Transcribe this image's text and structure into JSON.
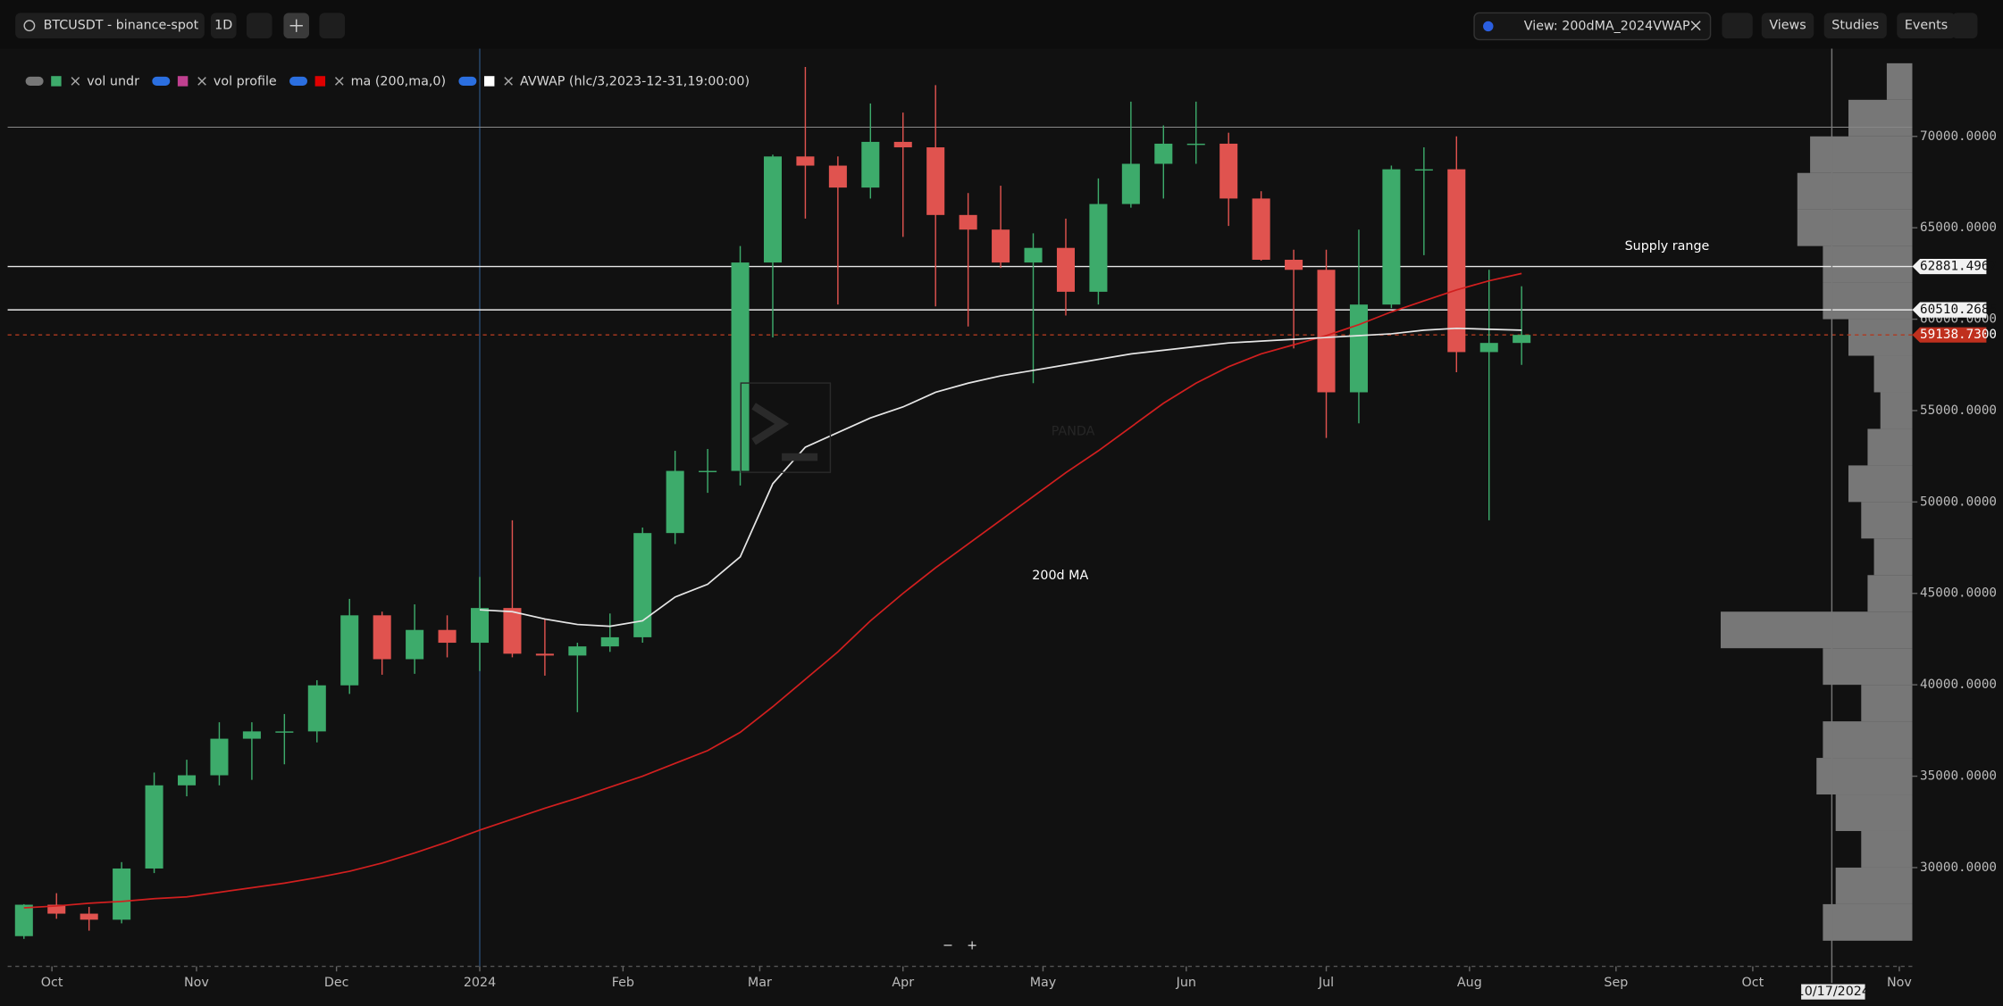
{
  "toolbar": {
    "symbol": "BTCUSDT - binance-spot",
    "interval": "1D",
    "view": "View: 200dMA_2024VWAP",
    "buttons": [
      "Views",
      "Studies",
      "Events"
    ]
  },
  "legend": [
    "vol undr",
    "vol profile",
    "ma (200,ma,0)",
    "AVWAP (hlc/3,2023-12-31,19:00:00)"
  ],
  "watermark": "PANDA",
  "zoom_controls": [
    "−",
    "+"
  ],
  "crosshair_date": "10/17/2024",
  "chart_data": {
    "type": "candlestick",
    "annotations": [
      "Supply range",
      "200d MA"
    ],
    "xlim": [
      -0.5,
      58.0
    ],
    "xticks": [
      {
        "value": 0.86,
        "label": "Oct"
      },
      {
        "value": 5.3,
        "label": "Nov"
      },
      {
        "value": 9.6,
        "label": "Dec"
      },
      {
        "value": 14.0,
        "label": "2024"
      },
      {
        "value": 18.4,
        "label": "Feb"
      },
      {
        "value": 22.6,
        "label": "Mar"
      },
      {
        "value": 27.0,
        "label": "Apr"
      },
      {
        "value": 31.3,
        "label": "May"
      },
      {
        "value": 35.7,
        "label": "Jun"
      },
      {
        "value": 40.0,
        "label": "Jul"
      },
      {
        "value": 44.4,
        "label": "Aug"
      },
      {
        "value": 48.9,
        "label": "Sep"
      },
      {
        "value": 53.1,
        "label": "Oct"
      },
      {
        "value": 57.6,
        "label": "Nov"
      }
    ],
    "ylim": [
      24600,
      74800
    ],
    "yticks": [
      {
        "value": 30000,
        "label": "30000.0000"
      },
      {
        "value": 35000,
        "label": "35000.0000"
      },
      {
        "value": 40000,
        "label": "40000.0000"
      },
      {
        "value": 45000,
        "label": "45000.0000"
      },
      {
        "value": 50000,
        "label": "50000.0000"
      },
      {
        "value": 55000,
        "label": "55000.0000"
      },
      {
        "value": 60000,
        "label": "60000.0000"
      },
      {
        "value": 65000,
        "label": "65000.0000"
      },
      {
        "value": 70000,
        "label": "70000.0000"
      }
    ],
    "up_color": "#3dab6b",
    "down_color": "#e0534f",
    "candles": {
      "open": [
        26250,
        27970,
        27480,
        27150,
        29950,
        34500,
        35050,
        37050,
        37450,
        37450,
        39970,
        43800,
        41400,
        43000,
        42300,
        44200,
        41700,
        41600,
        42100,
        42600,
        48300,
        51700,
        51700,
        63100,
        68900,
        68400,
        67200,
        69700,
        69400,
        65700,
        64900,
        63100,
        63900,
        61500,
        66300,
        68500,
        69600,
        69600,
        66600,
        63250,
        62700,
        56000,
        60800,
        68200,
        68200,
        58200,
        58700
      ],
      "high": [
        28000,
        28600,
        27850,
        30300,
        35200,
        35900,
        37950,
        37950,
        38400,
        40250,
        44700,
        44000,
        44400,
        43800,
        45900,
        49000,
        43600,
        42300,
        43900,
        48600,
        52800,
        52900,
        64000,
        69000,
        73800,
        68900,
        71800,
        71300,
        72800,
        66900,
        67300,
        64700,
        65500,
        67700,
        71900,
        70600,
        71900,
        70200,
        67000,
        63800,
        63800,
        64900,
        68400,
        69400,
        70000,
        62700,
        61800
      ],
      "low": [
        26100,
        27200,
        26550,
        26950,
        29700,
        33900,
        34500,
        34800,
        35650,
        36850,
        39500,
        40550,
        40600,
        41500,
        40750,
        41500,
        40500,
        38500,
        41800,
        42300,
        47700,
        50500,
        50900,
        59000,
        65500,
        60800,
        66600,
        64500,
        60700,
        59600,
        62800,
        56500,
        60200,
        60800,
        66100,
        66600,
        68500,
        65100,
        63200,
        58400,
        53500,
        54300,
        60600,
        63500,
        57100,
        49000,
        57500
      ],
      "close": [
        27970,
        27480,
        27150,
        29950,
        34500,
        35050,
        37050,
        37450,
        37450,
        39970,
        43800,
        41400,
        43000,
        42300,
        44200,
        41700,
        41600,
        42100,
        42600,
        48300,
        51700,
        51700,
        63100,
        68900,
        68400,
        67200,
        69700,
        69400,
        65700,
        64900,
        63100,
        63900,
        61500,
        66300,
        68500,
        69600,
        69600,
        66600,
        63250,
        62700,
        56000,
        60800,
        68200,
        68200,
        58200,
        58700,
        59140
      ]
    },
    "series": [
      {
        "name": "ma (200,ma,0)",
        "color": "#d11f1f",
        "values": [
          27800,
          27900,
          28050,
          28150,
          28300,
          28400,
          28650,
          28900,
          29150,
          29450,
          29800,
          30250,
          30800,
          31400,
          32050,
          32650,
          33250,
          33800,
          34400,
          35000,
          35700,
          36400,
          37400,
          38800,
          40300,
          41800,
          43500,
          45000,
          46400,
          47700,
          49000,
          50300,
          51600,
          52800,
          54100,
          55400,
          56500,
          57400,
          58100,
          58600,
          59100,
          59700,
          60400,
          61000,
          61600,
          62100,
          62500
        ]
      },
      {
        "name": "AVWAP (hlc/3,2023-12-31,19:00:00)",
        "color": "#e6e6e6",
        "values": [
          null,
          null,
          null,
          null,
          null,
          null,
          null,
          null,
          null,
          null,
          null,
          null,
          null,
          null,
          44100,
          44000,
          43600,
          43300,
          43200,
          43500,
          44800,
          45500,
          47000,
          51000,
          53000,
          53800,
          54600,
          55200,
          56000,
          56500,
          56900,
          57200,
          57500,
          57800,
          58100,
          58300,
          58500,
          58700,
          58800,
          58900,
          59000,
          59100,
          59200,
          59400,
          59500,
          59450,
          59400
        ]
      }
    ],
    "hlines": [
      70500
    ],
    "levels": [
      62881.4967,
      60510.2685
    ],
    "last_price": {
      "value": 59138.73,
      "label": "59138.7300"
    },
    "vol_profile": {
      "bins": [
        26000,
        28000,
        30000,
        32000,
        34000,
        36000,
        38000,
        40000,
        42000,
        44000,
        46000,
        48000,
        50000,
        52000,
        54000,
        56000,
        58000,
        60000,
        62000,
        64000,
        66000,
        68000,
        70000,
        72000,
        74000
      ],
      "values": [
        70,
        60,
        40,
        60,
        75,
        70,
        40,
        70,
        150,
        35,
        30,
        40,
        50,
        35,
        25,
        30,
        50,
        70,
        70,
        90,
        90,
        80,
        50,
        20
      ]
    }
  }
}
